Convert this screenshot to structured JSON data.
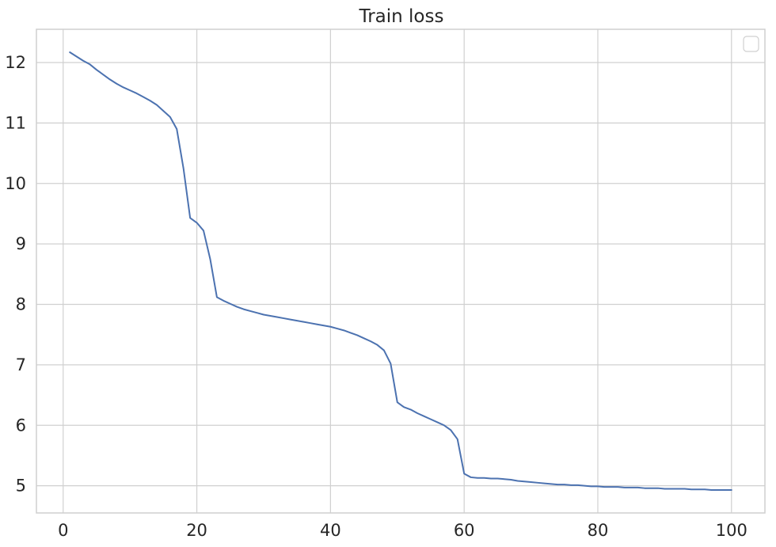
{
  "chart_data": {
    "type": "line",
    "title": "Train loss",
    "xlabel": "",
    "ylabel": "",
    "xlim": [
      -4,
      105
    ],
    "ylim": [
      4.55,
      12.55
    ],
    "xticks": [
      0,
      20,
      40,
      60,
      80,
      100
    ],
    "yticks": [
      5,
      6,
      7,
      8,
      9,
      10,
      11,
      12
    ],
    "grid": true,
    "legend": {
      "placement": "top-right",
      "entries": []
    },
    "series": [
      {
        "color": "#4c72b0",
        "x": [
          1,
          2,
          3,
          4,
          5,
          6,
          7,
          8,
          9,
          10,
          11,
          12,
          13,
          14,
          15,
          16,
          17,
          18,
          19,
          20,
          21,
          22,
          23,
          24,
          25,
          26,
          27,
          28,
          29,
          30,
          31,
          32,
          33,
          34,
          35,
          36,
          37,
          38,
          39,
          40,
          41,
          42,
          43,
          44,
          45,
          46,
          47,
          48,
          49,
          50,
          51,
          52,
          53,
          54,
          55,
          56,
          57,
          58,
          59,
          60,
          61,
          62,
          63,
          64,
          65,
          66,
          67,
          68,
          69,
          70,
          71,
          72,
          73,
          74,
          75,
          76,
          77,
          78,
          79,
          80,
          81,
          82,
          83,
          84,
          85,
          86,
          87,
          88,
          89,
          90,
          91,
          92,
          93,
          94,
          95,
          96,
          97,
          98,
          99,
          100
        ],
        "y": [
          12.17,
          12.1,
          12.03,
          11.97,
          11.88,
          11.8,
          11.72,
          11.65,
          11.59,
          11.54,
          11.49,
          11.43,
          11.37,
          11.3,
          11.2,
          11.1,
          10.9,
          10.25,
          9.43,
          9.35,
          9.22,
          8.75,
          8.12,
          8.06,
          8.01,
          7.96,
          7.92,
          7.89,
          7.86,
          7.83,
          7.81,
          7.79,
          7.77,
          7.75,
          7.73,
          7.71,
          7.69,
          7.67,
          7.65,
          7.63,
          7.6,
          7.57,
          7.53,
          7.49,
          7.44,
          7.39,
          7.33,
          7.24,
          7.02,
          6.38,
          6.3,
          6.26,
          6.2,
          6.15,
          6.1,
          6.05,
          6.0,
          5.92,
          5.77,
          5.2,
          5.14,
          5.13,
          5.13,
          5.12,
          5.12,
          5.11,
          5.1,
          5.08,
          5.07,
          5.06,
          5.05,
          5.04,
          5.03,
          5.02,
          5.02,
          5.01,
          5.01,
          5.0,
          4.99,
          4.99,
          4.98,
          4.98,
          4.98,
          4.97,
          4.97,
          4.97,
          4.96,
          4.96,
          4.96,
          4.95,
          4.95,
          4.95,
          4.95,
          4.94,
          4.94,
          4.94,
          4.93,
          4.93,
          4.93,
          4.93
        ]
      }
    ]
  }
}
